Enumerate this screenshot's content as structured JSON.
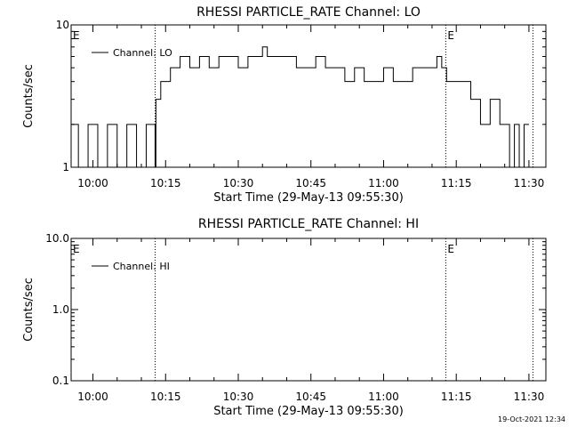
{
  "footer": {
    "timestamp": "19-Oct-2021 12:34"
  },
  "chart_data": [
    {
      "type": "line",
      "title": "RHESSI PARTICLE_RATE Channel: LO",
      "xlabel": "Start Time (29-May-13 09:55:30)",
      "ylabel": "Counts/sec",
      "yscale": "log",
      "ylim": [
        1,
        10
      ],
      "yticks": [
        "1",
        "10"
      ],
      "xlim": [
        "09:55:30",
        "11:33:30"
      ],
      "xticks": [
        "10:00",
        "10:15",
        "10:30",
        "10:45",
        "11:00",
        "11:15",
        "11:30"
      ],
      "markers": [
        {
          "label": "E",
          "time": "09:55:30"
        },
        {
          "label": "E",
          "time": "11:12:50"
        }
      ],
      "vertical_lines": [
        "10:12:50",
        "11:12:50",
        "11:30:50"
      ],
      "legend": "top-left",
      "series": [
        {
          "name": "Channel: LO",
          "x": [
            "09:55:30",
            "09:57:00",
            "09:59:00",
            "10:01:00",
            "10:03:00",
            "10:05:00",
            "10:07:00",
            "10:09:00",
            "10:11:00",
            "10:12:50",
            "10:13:00",
            "10:14:00",
            "10:16:00",
            "10:18:00",
            "10:20:00",
            "10:22:00",
            "10:24:00",
            "10:26:00",
            "10:28:00",
            "10:30:00",
            "10:32:00",
            "10:34:00",
            "10:35:00",
            "10:36:00",
            "10:38:00",
            "10:40:00",
            "10:42:00",
            "10:44:00",
            "10:46:00",
            "10:48:00",
            "10:50:00",
            "10:52:00",
            "10:54:00",
            "10:56:00",
            "10:58:00",
            "11:00:00",
            "11:02:00",
            "11:04:00",
            "11:06:00",
            "11:08:00",
            "11:10:00",
            "11:11:00",
            "11:12:00",
            "11:13:00",
            "11:14:00",
            "11:16:00",
            "11:18:00",
            "11:19:00",
            "11:20:00",
            "11:22:00",
            "11:24:00",
            "11:25:00",
            "11:26:00",
            "11:27:00",
            "11:28:00",
            "11:29:00",
            "11:30:00"
          ],
          "y": [
            2,
            1,
            2,
            1,
            2,
            1,
            2,
            1,
            2,
            1,
            3,
            4,
            5,
            6,
            5,
            6,
            5,
            6,
            6,
            5,
            6,
            6,
            7,
            6,
            6,
            6,
            5,
            5,
            6,
            5,
            5,
            4,
            5,
            4,
            4,
            5,
            4,
            4,
            5,
            5,
            5,
            6,
            5,
            4,
            4,
            4,
            3,
            3,
            2,
            3,
            2,
            2,
            1,
            2,
            1,
            2,
            2
          ]
        }
      ]
    },
    {
      "type": "line",
      "title": "RHESSI PARTICLE_RATE Channel: HI",
      "xlabel": "Start Time (29-May-13 09:55:30)",
      "ylabel": "Counts/sec",
      "yscale": "log",
      "ylim": [
        0.1,
        10
      ],
      "yticks": [
        "0.1",
        "1.0",
        "10.0"
      ],
      "xlim": [
        "09:55:30",
        "11:33:30"
      ],
      "xticks": [
        "10:00",
        "10:15",
        "10:30",
        "10:45",
        "11:00",
        "11:15",
        "11:30"
      ],
      "markers": [
        {
          "label": "E",
          "time": "09:55:30"
        },
        {
          "label": "E",
          "time": "11:12:50"
        }
      ],
      "vertical_lines": [
        "10:12:50",
        "11:12:50",
        "11:30:50"
      ],
      "legend": "top-left",
      "series": [
        {
          "name": "Channel: HI",
          "x": [],
          "y": []
        }
      ]
    }
  ]
}
